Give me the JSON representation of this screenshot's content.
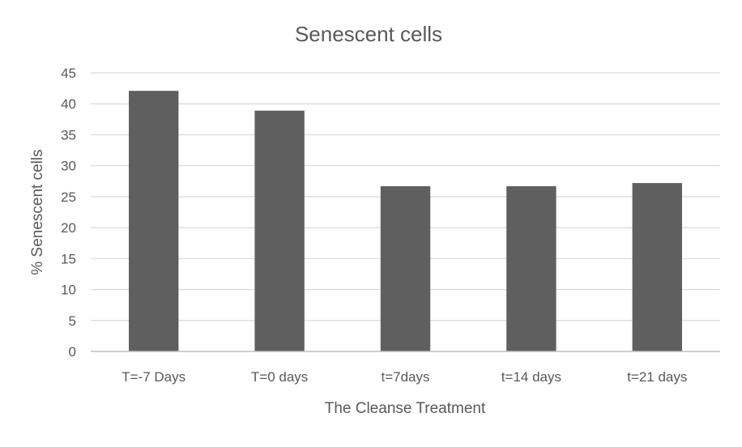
{
  "chart_data": {
    "type": "bar",
    "title": "Senescent cells",
    "xlabel": "The Cleanse Treatment",
    "ylabel": "% Senescent cells",
    "categories": [
      "T=-7 Days",
      "T=0 days",
      "t=7days",
      "t=14 days",
      "t=21 days"
    ],
    "values": [
      42.1,
      38.9,
      26.7,
      26.7,
      27.2
    ],
    "ylim": [
      0,
      45
    ],
    "yticks": [
      "0",
      "5",
      "10",
      "15",
      "20",
      "25",
      "30",
      "35",
      "40",
      "45"
    ],
    "grid": true,
    "legend": "none",
    "colors": {
      "bar": "#5f5f5f",
      "grid": "#d9d9d9",
      "axis": "#bfbfbf",
      "text": "#595959"
    }
  }
}
